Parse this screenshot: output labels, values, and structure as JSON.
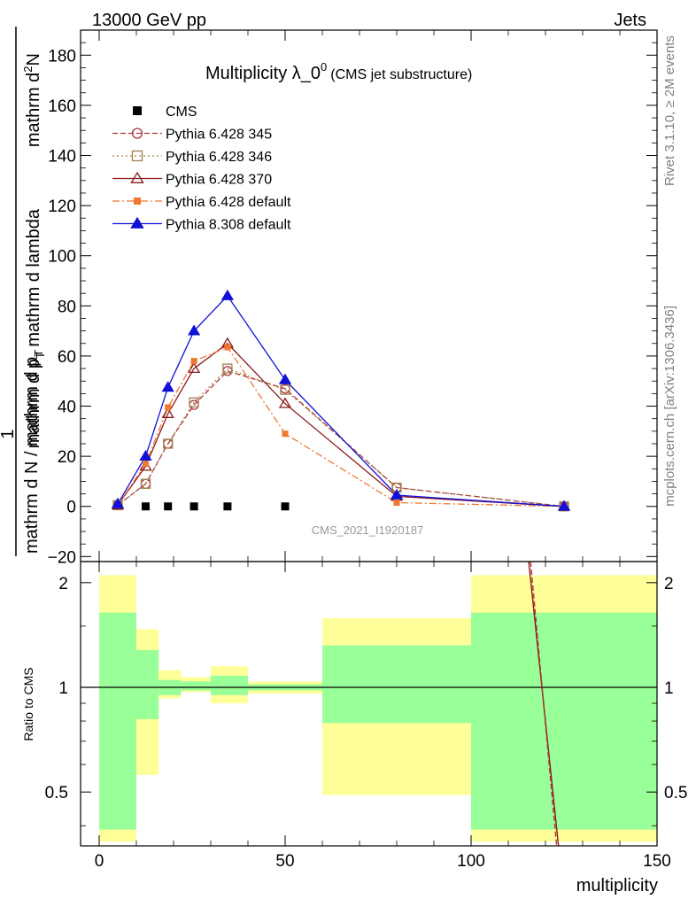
{
  "header": {
    "energy": "13000 GeV pp",
    "category": "Jets",
    "rivet_note": "Rivet 3.1.10, ≥ 2M events",
    "site_note": "mcplots.cern.ch [arXiv:1306.3436]",
    "watermark": "CMS_2021_I1920187"
  },
  "chart_data": {
    "type": "line",
    "title": "Multiplicity λ_0",
    "title_sup": "0",
    "subtitle": "(CMS jet substructure)",
    "xlabel": "multiplicity",
    "ylabel_top": "mathrm d",
    "ylabel_top_sup": "2",
    "ylabel_top_tail": "N",
    "ylabel_mid": "mathrm d p",
    "ylabel_mid_sub": "T",
    "ylabel_mid_tail": " mathrm d lambda",
    "ylabel_one": "1",
    "ylabel_bottom": "mathrm d N / mathrm d p",
    "ylabel_bottom_sub": "T",
    "ratio_ylabel": "Ratio to CMS",
    "xlim": [
      -5,
      150
    ],
    "ylim": [
      -22,
      190
    ],
    "ratio_ylim": [
      0.35,
      2.3
    ],
    "x_ticks": [
      0,
      50,
      100,
      150
    ],
    "y_ticks": [
      -20,
      0,
      20,
      40,
      60,
      80,
      100,
      120,
      140,
      160,
      180
    ],
    "ratio_ticks": [
      0.5,
      1,
      2
    ],
    "legend_position": "top-left",
    "series": [
      {
        "name": "CMS",
        "color": "#000000",
        "style": "markers",
        "marker": "square-filled",
        "x": [
          12.5,
          18.5,
          25.5,
          34.5,
          50
        ],
        "y": [
          0,
          0,
          0,
          0,
          0
        ]
      },
      {
        "name": "Pythia 6.428 345",
        "color": "#b03838",
        "style": "dashed",
        "marker": "circle-open",
        "x": [
          5,
          12.5,
          18.5,
          25.5,
          34.5,
          50,
          80,
          125
        ],
        "y": [
          0.5,
          9,
          25,
          40.5,
          54,
          47,
          7.5,
          0
        ]
      },
      {
        "name": "Pythia 6.428 346",
        "color": "#a08050",
        "style": "dotted",
        "marker": "square-open",
        "x": [
          5,
          12.5,
          18.5,
          25.5,
          34.5,
          50,
          80,
          125
        ],
        "y": [
          0.5,
          9,
          25,
          41.5,
          55,
          46.5,
          7.5,
          0
        ]
      },
      {
        "name": "Pythia 6.428 370",
        "color": "#8b1a1a",
        "style": "solid",
        "marker": "triangle-open",
        "x": [
          5,
          12.5,
          18.5,
          25.5,
          34.5,
          50,
          80,
          125
        ],
        "y": [
          0.5,
          16,
          37,
          55,
          65,
          41,
          4,
          0
        ]
      },
      {
        "name": "Pythia 6.428 default",
        "color": "#f07830",
        "style": "dashdot",
        "marker": "square-filled",
        "x": [
          5,
          12.5,
          18.5,
          25.5,
          34.5,
          50,
          80,
          125
        ],
        "y": [
          0.5,
          17,
          39.5,
          58,
          63.5,
          29,
          1.5,
          0
        ]
      },
      {
        "name": "Pythia 8.308 default",
        "color": "#1010d8",
        "style": "solid",
        "marker": "triangle-filled",
        "x": [
          5,
          12.5,
          18.5,
          25.5,
          34.5,
          50,
          80,
          125
        ],
        "y": [
          1,
          20,
          47.5,
          70,
          84,
          50.5,
          4.5,
          0
        ]
      }
    ],
    "ratio_bands": [
      {
        "x0": 0,
        "x1": 10,
        "yellow": [
          0.36,
          2.1
        ],
        "green": [
          0.39,
          1.64
        ]
      },
      {
        "x0": 10,
        "x1": 16,
        "yellow": [
          0.56,
          1.47
        ],
        "green": [
          0.81,
          1.28
        ]
      },
      {
        "x0": 16,
        "x1": 22,
        "yellow": [
          0.93,
          1.12
        ],
        "green": [
          0.95,
          1.05
        ]
      },
      {
        "x0": 22,
        "x1": 30,
        "yellow": [
          0.97,
          1.07
        ],
        "green": [
          0.98,
          1.04
        ]
      },
      {
        "x0": 30,
        "x1": 40,
        "yellow": [
          0.9,
          1.15
        ],
        "green": [
          0.95,
          1.08
        ]
      },
      {
        "x0": 40,
        "x1": 60,
        "yellow": [
          0.96,
          1.04
        ],
        "green": [
          0.98,
          1.02
        ]
      },
      {
        "x0": 60,
        "x1": 100,
        "yellow": [
          0.49,
          1.58
        ],
        "green": [
          0.79,
          1.32
        ]
      },
      {
        "x0": 100,
        "x1": 150,
        "yellow": [
          0.36,
          2.1
        ],
        "green": [
          0.39,
          1.64
        ]
      }
    ],
    "ratio_lines": [
      {
        "name": "Pythia 6.428 370",
        "color": "#8b1a1a",
        "style": "solid",
        "x": [
          115.5,
          123.5
        ],
        "y": [
          2.3,
          0.35
        ]
      },
      {
        "name": "Pythia 6.428 345",
        "color": "#b03838",
        "style": "dashed",
        "x": [
          116,
          123
        ],
        "y": [
          2.3,
          0.35
        ]
      }
    ]
  }
}
